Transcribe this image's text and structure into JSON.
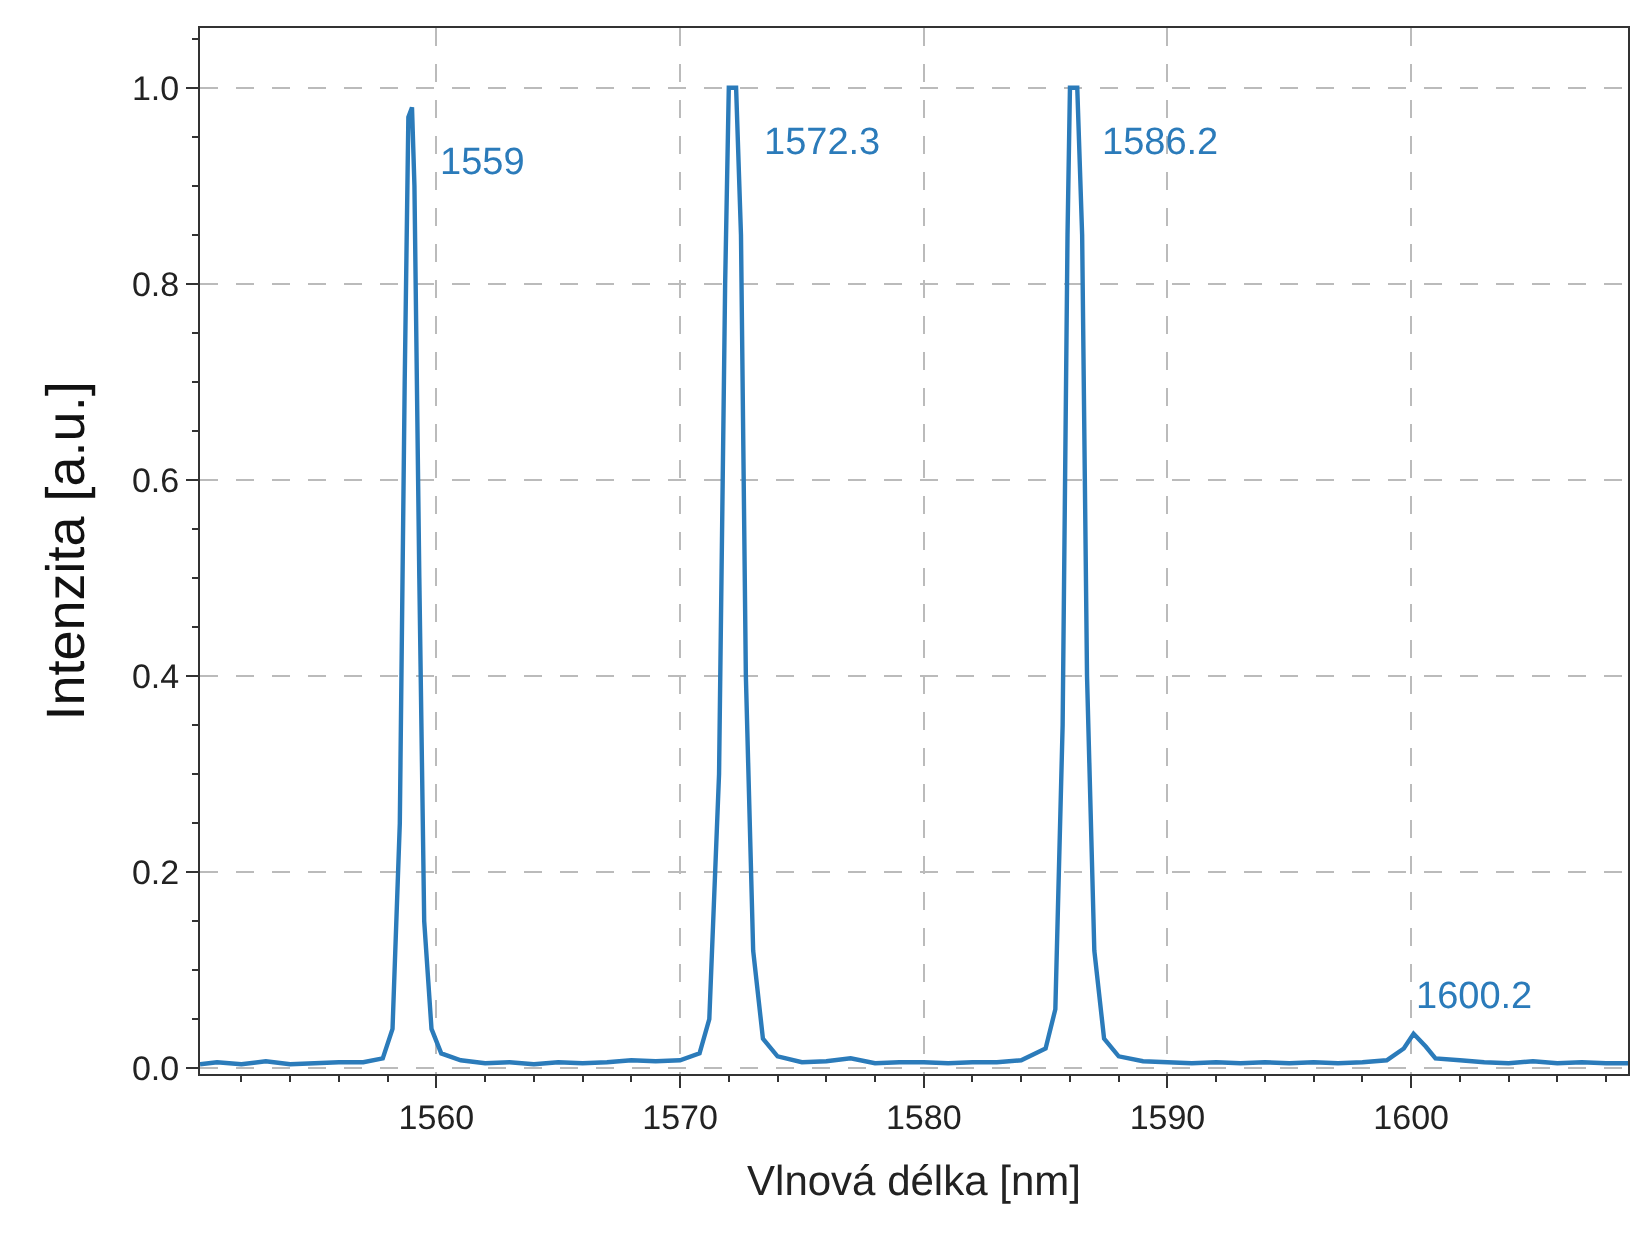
{
  "chart_data": {
    "type": "line",
    "xlabel": "Vlnová délka [nm]",
    "ylabel": "Intenzita [a.u.]",
    "xlim": [
      1550.3,
      1608.9
    ],
    "xticks": [
      1560,
      1570,
      1580,
      1590,
      1600
    ],
    "ylim": [
      -0.006,
      1.061
    ],
    "yticks": [
      {
        "value": 0,
        "label": "0.0"
      },
      {
        "value": 0.2,
        "label": "0.2"
      },
      {
        "value": 0.4,
        "label": "0.4"
      },
      {
        "value": 0.6,
        "label": "0.6"
      },
      {
        "value": 0.8,
        "label": "0.8"
      },
      {
        "value": 1,
        "label": "1.0"
      }
    ],
    "grid": true,
    "marker": "none",
    "line_style": "solid",
    "series": [
      {
        "color": "#2b7bba",
        "x": [
          1550.3,
          1551,
          1552,
          1553,
          1554,
          1555,
          1556,
          1557,
          1557.8,
          1558.2,
          1558.5,
          1558.7,
          1558.85,
          1559,
          1559.1,
          1559.3,
          1559.5,
          1559.8,
          1560.2,
          1561,
          1562,
          1563,
          1564,
          1565,
          1566,
          1567,
          1568,
          1569,
          1570,
          1570.8,
          1571.2,
          1571.6,
          1571.85,
          1572.0,
          1572.3,
          1572.5,
          1572.7,
          1573,
          1573.4,
          1574,
          1575,
          1576,
          1577,
          1578,
          1579,
          1580,
          1581,
          1582,
          1583,
          1584,
          1585,
          1585.4,
          1585.7,
          1585.9,
          1586.0,
          1586.3,
          1586.5,
          1586.7,
          1587,
          1587.4,
          1588,
          1589,
          1590,
          1591,
          1592,
          1593,
          1594,
          1595,
          1596,
          1597,
          1598,
          1599,
          1599.7,
          1600.1,
          1600.6,
          1601,
          1602,
          1603,
          1604,
          1605,
          1606,
          1607,
          1608,
          1608.9
        ],
        "values": [
          0.004,
          0.006,
          0.004,
          0.007,
          0.004,
          0.005,
          0.006,
          0.006,
          0.01,
          0.04,
          0.25,
          0.7,
          0.97,
          0.98,
          0.9,
          0.5,
          0.15,
          0.04,
          0.015,
          0.008,
          0.005,
          0.006,
          0.004,
          0.006,
          0.005,
          0.006,
          0.008,
          0.007,
          0.008,
          0.015,
          0.05,
          0.3,
          0.8,
          1.0,
          1.0,
          0.85,
          0.4,
          0.12,
          0.03,
          0.012,
          0.006,
          0.007,
          0.01,
          0.005,
          0.006,
          0.006,
          0.005,
          0.006,
          0.006,
          0.008,
          0.02,
          0.06,
          0.35,
          0.85,
          1.0,
          1.0,
          0.85,
          0.4,
          0.12,
          0.03,
          0.012,
          0.007,
          0.006,
          0.005,
          0.006,
          0.005,
          0.006,
          0.005,
          0.006,
          0.005,
          0.006,
          0.008,
          0.02,
          0.035,
          0.022,
          0.01,
          0.008,
          0.006,
          0.005,
          0.007,
          0.005,
          0.006,
          0.005,
          0.005
        ]
      }
    ],
    "annotations": [
      {
        "text": "1559",
        "x": 1559,
        "y": 0.98
      },
      {
        "text": "1572.3",
        "x": 1572.3,
        "y": 1.0
      },
      {
        "text": "1586.2",
        "x": 1586.2,
        "y": 1.0
      },
      {
        "text": "1600.2",
        "x": 1600.2,
        "y": 0.035
      }
    ]
  }
}
